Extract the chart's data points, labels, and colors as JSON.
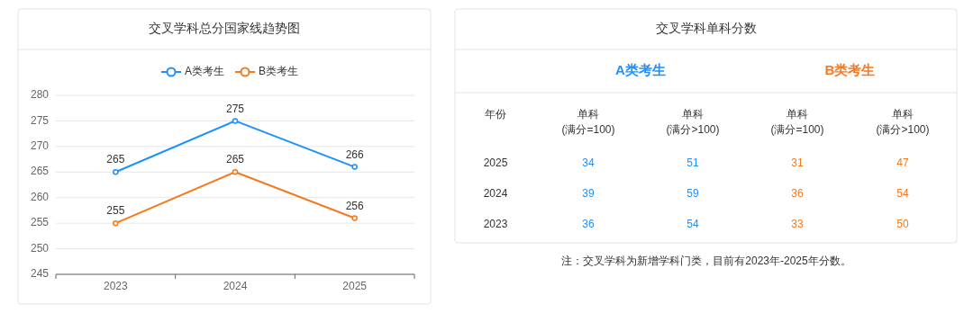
{
  "chart_data": [
    {
      "type": "line",
      "title": "交叉学科总分国家线趋势图",
      "categories": [
        "2023",
        "2024",
        "2025"
      ],
      "series": [
        {
          "name": "A类考生",
          "color": "#1e90ff",
          "values": [
            265,
            275,
            266
          ]
        },
        {
          "name": "B类考生",
          "color": "#f47a20",
          "values": [
            255,
            265,
            256
          ]
        }
      ],
      "ylim": [
        245,
        280
      ],
      "yticks": [
        245,
        250,
        255,
        260,
        265,
        270,
        275,
        280
      ],
      "grid": "y",
      "legend": "top",
      "marker": "circle",
      "data_labels": true
    },
    {
      "type": "other",
      "title": "交叉学科单科分数",
      "categories": [
        "2025",
        "2024",
        "2023"
      ],
      "series": [
        {
          "name": "单科\n(满分=100)",
          "colors": [
            "#1e90ff",
            "#1e90ff",
            "#1e90ff"
          ],
          "values": [
            34,
            39,
            36
          ]
        },
        {
          "name": "单科\n(满分>100)",
          "colors": [
            "#1e90ff",
            "#1e90ff",
            "#1e90ff"
          ],
          "values": [
            51,
            59,
            54
          ]
        },
        {
          "name": "单科\n(满分=100)",
          "colors": [
            "#f47a20",
            "#f47a20",
            "#f47a20"
          ],
          "values": [
            31,
            36,
            33
          ]
        },
        {
          "name": "单科\n(满分>100)",
          "colors": [
            "#f47a20",
            "#f47a20",
            "#f47a20"
          ],
          "values": [
            47,
            54,
            50
          ]
        }
      ],
      "data_labels": true,
      "annotations": [
        "年份",
        "A类考生",
        "B类考生",
        "注：交叉学科为新增学科门类，目前有2023年-2025年分数。"
      ]
    }
  ]
}
